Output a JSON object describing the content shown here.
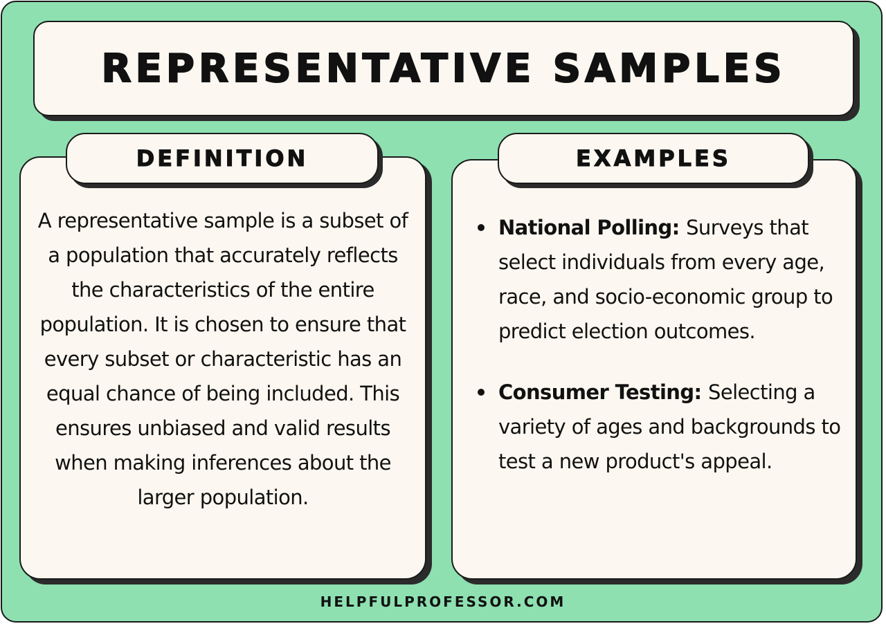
{
  "title": "REPRESENTATIVE SAMPLES",
  "definition": {
    "heading": "DEFINITION",
    "text": "A representative sample is a subset of a population that accurately reflects the characteristics of the entire population. It is chosen to ensure that every subset or characteristic has an equal chance of being included. This ensures unbiased and valid results when making inferences about the larger population."
  },
  "examples": {
    "heading": "EXAMPLES",
    "items": [
      {
        "title": "National Polling:",
        "text": "Surveys that select individuals from every age, race, and socio-economic group to predict election outcomes."
      },
      {
        "title": "Consumer Testing:",
        "text": "Selecting a variety of ages and backgrounds to test a new product's appeal."
      }
    ]
  },
  "footer": "HELPFULPROFESSOR.COM",
  "colors": {
    "background": "#8ee0b0",
    "card": "#fcf7f0",
    "outline": "#1a1a1a"
  }
}
